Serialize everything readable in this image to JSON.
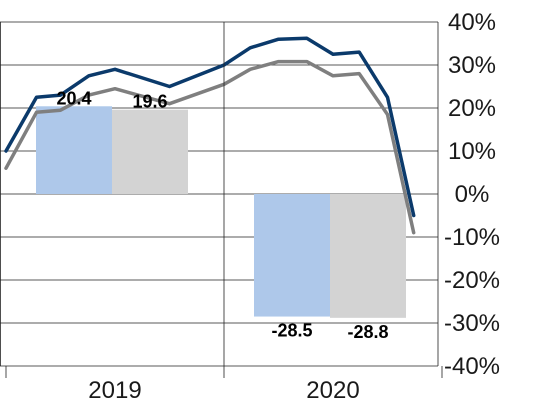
{
  "chart_data": {
    "type": "bar",
    "categories": [
      "2019",
      "2020"
    ],
    "ylim": [
      -40,
      40
    ],
    "yticks": [
      40,
      30,
      20,
      10,
      0,
      -10,
      -20,
      -30,
      -40
    ],
    "ytick_labels": [
      "40%",
      "30%",
      "20%",
      "10%",
      "0%",
      "-10%",
      "-20%",
      "-30%",
      "-40%"
    ],
    "ytick_side": "right",
    "grid": true,
    "legend": "none",
    "bar_series": [
      {
        "color": "#aec8ea",
        "values": [
          20.4,
          -28.5
        ],
        "labels": [
          "20.4",
          "-28.5"
        ]
      },
      {
        "color": "#d3d3d3",
        "values": [
          19.6,
          -28.8
        ],
        "labels": [
          "19.6",
          "-28.8"
        ]
      }
    ],
    "line_series": [
      {
        "color": "#0b3a6b",
        "points": [
          [
            0.0,
            10.0
          ],
          [
            0.14,
            22.5
          ],
          [
            0.25,
            23.0
          ],
          [
            0.38,
            27.5
          ],
          [
            0.5,
            29.0
          ],
          [
            0.75,
            25.0
          ],
          [
            1.0,
            30.0
          ],
          [
            1.12,
            34.0
          ],
          [
            1.25,
            36.0
          ],
          [
            1.38,
            36.2
          ],
          [
            1.5,
            32.5
          ],
          [
            1.62,
            33.0
          ],
          [
            1.75,
            22.5
          ],
          [
            1.87,
            -5.0
          ]
        ]
      },
      {
        "color": "#7f7f7f",
        "points": [
          [
            0.0,
            6.0
          ],
          [
            0.14,
            19.0
          ],
          [
            0.25,
            19.5
          ],
          [
            0.38,
            23.0
          ],
          [
            0.5,
            24.5
          ],
          [
            0.75,
            21.0
          ],
          [
            1.0,
            25.5
          ],
          [
            1.12,
            29.0
          ],
          [
            1.25,
            30.8
          ],
          [
            1.38,
            30.8
          ],
          [
            1.5,
            27.5
          ],
          [
            1.62,
            28.0
          ],
          [
            1.75,
            18.5
          ],
          [
            1.87,
            -9.0
          ]
        ]
      }
    ]
  }
}
